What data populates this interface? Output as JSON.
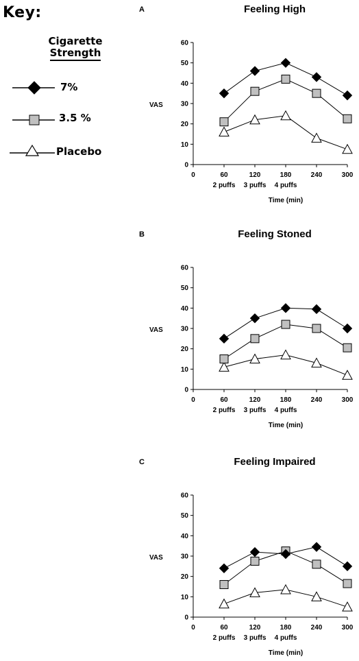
{
  "key": {
    "title": "Key:",
    "heading_line1": "Cigarette",
    "heading_line2": "Strength"
  },
  "colors": {
    "series_7pct": "#000000",
    "series_3_5pct": "#c0c0c0",
    "series_placebo": "#ffffff",
    "line": "#000000"
  },
  "chart_data": [
    {
      "type": "line",
      "panel_label": "A",
      "title": "Feeling High",
      "ylabel": "VAS",
      "xlabel": "Time (min)",
      "x": [
        60,
        120,
        180,
        240,
        300
      ],
      "xlim": [
        0,
        300
      ],
      "ylim": [
        0,
        60
      ],
      "x_ticks": [
        0,
        60,
        120,
        180,
        240,
        300
      ],
      "y_ticks": [
        0,
        10,
        20,
        30,
        40,
        50,
        60
      ],
      "puff_labels": [
        "2 puffs",
        "3 puffs",
        "4 puffs"
      ],
      "grid": false,
      "series": [
        {
          "name": "7%",
          "marker": "diamond",
          "values": [
            35,
            46,
            50,
            43,
            34
          ]
        },
        {
          "name": "3.5 %",
          "marker": "square",
          "values": [
            21,
            36,
            42,
            35,
            22.5
          ]
        },
        {
          "name": "Placebo",
          "marker": "triangle",
          "values": [
            16,
            22,
            24,
            13,
            7.5
          ]
        }
      ]
    },
    {
      "type": "line",
      "panel_label": "B",
      "title": "Feeling Stoned",
      "ylabel": "VAS",
      "xlabel": "Time (min)",
      "x": [
        60,
        120,
        180,
        240,
        300
      ],
      "xlim": [
        0,
        300
      ],
      "ylim": [
        0,
        60
      ],
      "x_ticks": [
        0,
        60,
        120,
        180,
        240,
        300
      ],
      "y_ticks": [
        0,
        10,
        20,
        30,
        40,
        50,
        60
      ],
      "puff_labels": [
        "2 puffs",
        "3 puffs",
        "4 puffs"
      ],
      "grid": false,
      "series": [
        {
          "name": "7%",
          "marker": "diamond",
          "values": [
            25,
            35,
            40,
            39.5,
            30
          ]
        },
        {
          "name": "3.5 %",
          "marker": "square",
          "values": [
            15,
            25,
            32,
            30,
            20.5
          ]
        },
        {
          "name": "Placebo",
          "marker": "triangle",
          "values": [
            11,
            15,
            17,
            13,
            7
          ]
        }
      ]
    },
    {
      "type": "line",
      "panel_label": "C",
      "title": "Feeling Impaired",
      "ylabel": "VAS",
      "xlabel": "Time (min)",
      "x": [
        60,
        120,
        180,
        240,
        300
      ],
      "xlim": [
        0,
        300
      ],
      "ylim": [
        0,
        60
      ],
      "x_ticks": [
        0,
        60,
        120,
        180,
        240,
        300
      ],
      "y_ticks": [
        0,
        10,
        20,
        30,
        40,
        50,
        60
      ],
      "puff_labels": [
        "2 puffs",
        "3 puffs",
        "4 puffs"
      ],
      "grid": false,
      "series": [
        {
          "name": "7%",
          "marker": "diamond",
          "values": [
            24,
            32,
            31,
            34.5,
            25
          ]
        },
        {
          "name": "3.5 %",
          "marker": "square",
          "values": [
            16,
            27.5,
            32.5,
            26,
            16.5
          ]
        },
        {
          "name": "Placebo",
          "marker": "triangle",
          "values": [
            6.5,
            12,
            13.5,
            10,
            5
          ]
        }
      ]
    }
  ]
}
